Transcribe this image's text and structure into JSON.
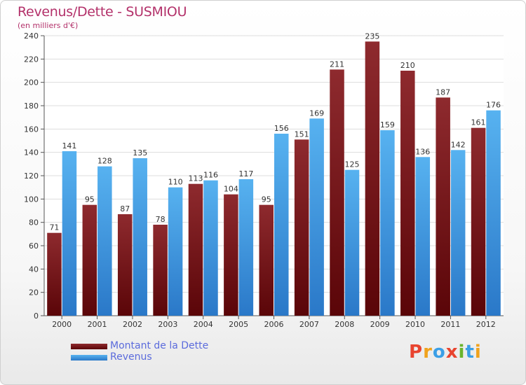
{
  "header": {
    "title": "Revenus/Dette - SUSMIOU",
    "subtitle": "(en milliers d'€)"
  },
  "legend": {
    "items": [
      {
        "label": "Montant de la Dette",
        "color": "#6b0f13"
      },
      {
        "label": "Revenus",
        "color": "#3b9fe6"
      }
    ]
  },
  "logo": {
    "letters": [
      "P",
      "r",
      "o",
      "x",
      "i",
      "t",
      "i"
    ],
    "colors": [
      "#e8442f",
      "#f0a21c",
      "#3b9fe6",
      "#e8442f",
      "#6ab42d",
      "#3b9fe6",
      "#f0a21c"
    ]
  },
  "chart_data": {
    "type": "bar",
    "title": "Revenus/Dette - SUSMIOU",
    "subtitle": "(en milliers d'€)",
    "categories": [
      "2000",
      "2001",
      "2002",
      "2003",
      "2004",
      "2005",
      "2006",
      "2007",
      "2008",
      "2009",
      "2010",
      "2011",
      "2012"
    ],
    "series": [
      {
        "name": "Montant de la Dette",
        "color": "#8b2323",
        "values": [
          71,
          95,
          87,
          78,
          113,
          104,
          95,
          151,
          211,
          235,
          210,
          187,
          161
        ]
      },
      {
        "name": "Revenus",
        "color": "#4aa7ea",
        "values": [
          141,
          128,
          135,
          110,
          116,
          117,
          156,
          169,
          125,
          159,
          136,
          142,
          176
        ]
      }
    ],
    "ylim": [
      0,
      240
    ],
    "yticks": [
      0,
      20,
      40,
      60,
      80,
      100,
      120,
      140,
      160,
      180,
      200,
      220,
      240
    ],
    "grid": true,
    "legend_position": "bottom-left"
  }
}
